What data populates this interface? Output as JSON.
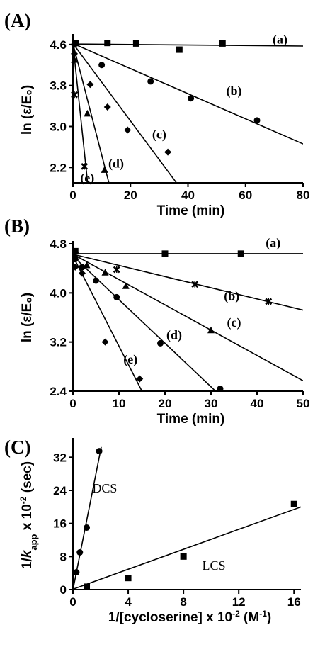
{
  "chart_data": [
    {
      "panel": "(A)",
      "type": "scatter",
      "xlabel": "Time (min)",
      "ylabel": "ln (ε/E₀)",
      "xlim": [
        0,
        80
      ],
      "ylim": [
        1.9,
        4.75
      ],
      "xticks": [
        "0",
        "20",
        "40",
        "60",
        "80"
      ],
      "yticks": [
        "2.2",
        "3.0",
        "3.8",
        "4.6"
      ],
      "ytick_values": [
        2.2,
        3.0,
        3.8,
        4.6
      ],
      "xtick_values": [
        0,
        20,
        40,
        60,
        80
      ],
      "series": [
        {
          "name": "(a)",
          "marker": "square",
          "x": [
            1,
            12,
            22,
            37,
            52
          ],
          "y": [
            4.63,
            4.63,
            4.62,
            4.5,
            4.62
          ],
          "line": [
            [
              0,
              4.61
            ],
            [
              80,
              4.57
            ]
          ],
          "label_at": [
            72,
            4.7
          ]
        },
        {
          "name": "(b)",
          "marker": "circle",
          "x": [
            0.5,
            10,
            27,
            41,
            64
          ],
          "y": [
            4.6,
            4.2,
            3.88,
            3.55,
            3.12
          ],
          "line": [
            [
              0,
              4.62
            ],
            [
              80,
              2.66
            ]
          ],
          "label_at": [
            56,
            3.7
          ]
        },
        {
          "name": "(c)",
          "marker": "diamond",
          "x": [
            0.5,
            6,
            12,
            19,
            33
          ],
          "y": [
            4.42,
            3.82,
            3.38,
            2.93,
            2.5
          ],
          "line": [
            [
              0,
              4.62
            ],
            [
              36,
              1.9
            ]
          ],
          "label_at": [
            30,
            2.85
          ]
        },
        {
          "name": "(d)",
          "marker": "triangle",
          "x": [
            0.5,
            5,
            11
          ],
          "y": [
            4.3,
            3.25,
            2.15
          ],
          "line": [
            [
              0,
              4.62
            ],
            [
              12.5,
              1.9
            ]
          ],
          "label_at": [
            15,
            2.28
          ]
        },
        {
          "name": "(e)",
          "marker": "cross",
          "x": [
            0.5,
            4
          ],
          "y": [
            3.62,
            2.22
          ],
          "line": [
            [
              0,
              4.62
            ],
            [
              5.1,
              1.9
            ]
          ],
          "label_at": [
            5,
            2.0
          ]
        }
      ]
    },
    {
      "panel": "(B)",
      "type": "scatter",
      "xlabel": "Time (min)",
      "ylabel": "ln (ε/E₀)",
      "xlim": [
        0,
        50
      ],
      "ylim": [
        2.4,
        4.8
      ],
      "xticks": [
        "0",
        "10",
        "20",
        "30",
        "40",
        "50"
      ],
      "yticks": [
        "2.4",
        "3.2",
        "4.0",
        "4.8"
      ],
      "ytick_values": [
        2.4,
        3.2,
        4.0,
        4.8
      ],
      "xtick_values": [
        0,
        10,
        20,
        30,
        40,
        50
      ],
      "series": [
        {
          "name": "(a)",
          "marker": "square",
          "x": [
            0.5,
            20,
            36.5
          ],
          "y": [
            4.68,
            4.64,
            4.64
          ],
          "line": [
            [
              0,
              4.64
            ],
            [
              50,
              4.64
            ]
          ],
          "label_at": [
            43.5,
            4.82
          ]
        },
        {
          "name": "(b)",
          "marker": "cross",
          "x": [
            0.5,
            9.5,
            26.5,
            42.5
          ],
          "y": [
            4.62,
            4.38,
            4.14,
            3.86
          ],
          "line": [
            [
              0,
              4.63
            ],
            [
              50,
              3.72
            ]
          ],
          "label_at": [
            34.5,
            3.95
          ]
        },
        {
          "name": "(c)",
          "marker": "triangle",
          "x": [
            0.5,
            3,
            7,
            11.5,
            30
          ],
          "y": [
            4.58,
            4.45,
            4.33,
            4.11,
            3.39
          ],
          "line": [
            [
              0,
              4.63
            ],
            [
              50,
              2.57
            ]
          ],
          "label_at": [
            35,
            3.52
          ]
        },
        {
          "name": "(d)",
          "marker": "circle",
          "x": [
            0.5,
            2,
            5,
            9.5,
            19,
            32
          ],
          "y": [
            4.55,
            4.42,
            4.2,
            3.93,
            3.18,
            2.44
          ],
          "line": [
            [
              0,
              4.6
            ],
            [
              31,
              2.4
            ]
          ],
          "label_at": [
            22,
            3.32
          ]
        },
        {
          "name": "(e)",
          "marker": "diamond",
          "x": [
            0.5,
            2,
            7,
            14.5
          ],
          "y": [
            4.42,
            4.32,
            3.2,
            2.6
          ],
          "line": [
            [
              0,
              4.6
            ],
            [
              15,
              2.4
            ]
          ],
          "label_at": [
            12.5,
            2.92
          ]
        }
      ]
    },
    {
      "panel": "(C)",
      "type": "scatter",
      "xlabel": "1/[cycloserine] x 10⁻² (M⁻¹)",
      "ylabel": "1/kapp x 10⁻² (sec)",
      "ylabel_parts": {
        "pre": "1/",
        "italic": "k",
        "sub": "app",
        "post": " x 10",
        "sup": "-2",
        "unit": " (sec)"
      },
      "xlabel_parts": {
        "pre": "1/[cycloserine] x 10",
        "sup": "-2",
        "mid": " (M",
        "sup2": "-1",
        "post": ")"
      },
      "xlim": [
        0,
        16.5
      ],
      "ylim": [
        0,
        36
      ],
      "xticks": [
        "0",
        "4",
        "8",
        "12",
        "16"
      ],
      "yticks": [
        "0",
        "8",
        "16",
        "24",
        "32"
      ],
      "ytick_values": [
        0,
        8,
        16,
        24,
        32
      ],
      "xtick_values": [
        0,
        4,
        8,
        12,
        16
      ],
      "series": [
        {
          "name": "DCS",
          "marker": "circle",
          "x": [
            0.25,
            0.5,
            1.0,
            1.9
          ],
          "y": [
            4.2,
            9.0,
            15.0,
            33.5
          ],
          "line": [
            [
              0.05,
              0.8
            ],
            [
              2.05,
              34.5
            ]
          ],
          "label_at": [
            2.3,
            24.5
          ]
        },
        {
          "name": "LCS",
          "marker": "square",
          "x": [
            1.0,
            4.0,
            8.0,
            16.0
          ],
          "y": [
            0.7,
            2.8,
            8.0,
            20.7
          ],
          "line": [
            [
              0,
              0.1
            ],
            [
              16.5,
              20.0
            ]
          ],
          "label_at": [
            10.2,
            5.8
          ]
        }
      ]
    }
  ]
}
